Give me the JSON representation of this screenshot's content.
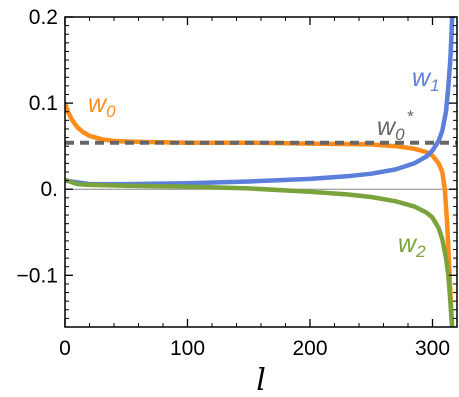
{
  "chart_data": {
    "type": "line",
    "xlabel": "l",
    "ylabel": "",
    "xlim": [
      0,
      320
    ],
    "ylim": [
      -0.16,
      0.2
    ],
    "x_ticks": [
      0,
      100,
      200,
      300
    ],
    "y_ticks": [
      {
        "value": 0.2,
        "label": "0.2"
      },
      {
        "value": 0.1,
        "label": "0.1"
      },
      {
        "value": 0.0,
        "label": "0."
      },
      {
        "value": -0.1,
        "label": "−0.1"
      }
    ],
    "zero_line": true,
    "series": [
      {
        "name": "w0",
        "label_main": "w",
        "label_sub": "0",
        "color": "#ff8c1a",
        "style": "solid",
        "x": [
          0,
          3,
          6,
          10,
          15,
          20,
          30,
          40,
          60,
          100,
          150,
          200,
          250,
          270,
          285,
          295,
          300,
          305,
          308,
          310,
          312,
          314,
          316
        ],
        "y": [
          0.1,
          0.088,
          0.08,
          0.072,
          0.066,
          0.062,
          0.058,
          0.056,
          0.055,
          0.054,
          0.054,
          0.053,
          0.052,
          0.05,
          0.047,
          0.043,
          0.039,
          0.03,
          0.02,
          0.0,
          -0.04,
          -0.1,
          -0.16
        ]
      },
      {
        "name": "w1",
        "label_main": "w",
        "label_sub": "1",
        "color": "#5b7fdb",
        "style": "solid",
        "x": [
          0,
          20,
          50,
          100,
          150,
          200,
          230,
          250,
          270,
          285,
          295,
          300,
          305,
          308,
          311,
          313,
          314.5,
          315.5,
          316
        ],
        "y": [
          0.01,
          0.006,
          0.006,
          0.007,
          0.009,
          0.012,
          0.015,
          0.018,
          0.023,
          0.03,
          0.038,
          0.045,
          0.056,
          0.068,
          0.09,
          0.12,
          0.15,
          0.18,
          0.2
        ]
      },
      {
        "name": "w2",
        "label_main": "w",
        "label_sub": "2",
        "color": "#7aa33c",
        "style": "solid",
        "x": [
          0,
          10,
          20,
          50,
          100,
          150,
          200,
          230,
          250,
          270,
          285,
          295,
          300,
          305,
          308,
          311,
          313,
          314.5,
          316
        ],
        "y": [
          0.011,
          0.006,
          0.005,
          0.004,
          0.003,
          0.001,
          -0.003,
          -0.006,
          -0.009,
          -0.014,
          -0.02,
          -0.027,
          -0.033,
          -0.045,
          -0.058,
          -0.08,
          -0.1,
          -0.13,
          -0.16
        ]
      },
      {
        "name": "w0*",
        "label_main": "w",
        "label_sub": "0",
        "label_sup": "*",
        "color": "#666666",
        "style": "dashed",
        "x": [
          0,
          320
        ],
        "y": [
          0.054,
          0.054
        ]
      }
    ]
  }
}
